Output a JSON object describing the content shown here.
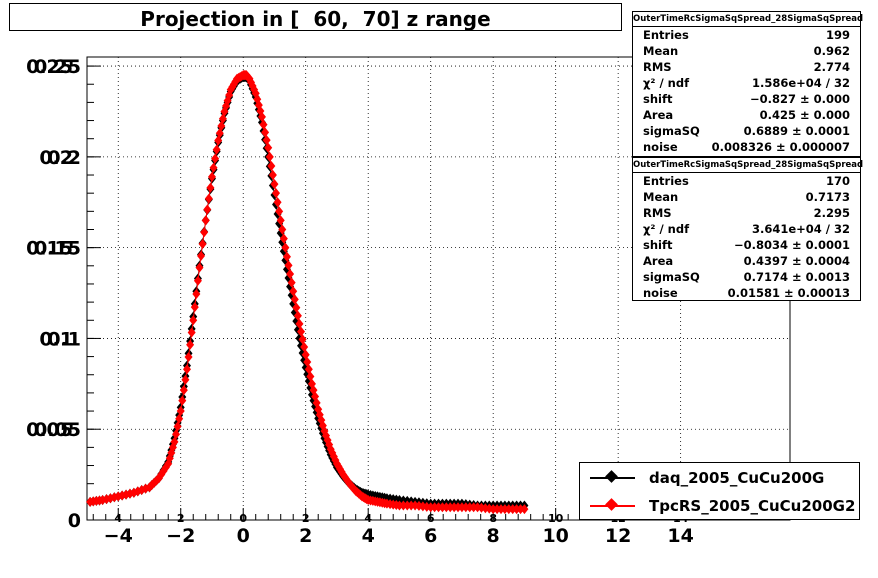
{
  "title": "Projection in [  60,  70] z range",
  "stats_boxes": [
    {
      "header": "OuterTimeRcSigmaSqSpread_28SigmaSqSpread",
      "rows": [
        {
          "label": "Entries",
          "value": "199"
        },
        {
          "label": "Mean",
          "value": "0.962"
        },
        {
          "label": "RMS",
          "value": "2.774"
        },
        {
          "label": "χ² / ndf",
          "value": "1.586e+04 / 32"
        },
        {
          "label": "shift",
          "value": "−0.827 ± 0.000"
        },
        {
          "label": "Area",
          "value": "0.425 ± 0.000"
        },
        {
          "label": "sigmaSQ",
          "value": "0.6889 ± 0.0001"
        },
        {
          "label": "noise",
          "value": "0.008326 ± 0.000007"
        }
      ]
    },
    {
      "header": "OuterTimeRcSigmaSqSpread_28SigmaSqSpread",
      "rows": [
        {
          "label": "Entries",
          "value": "170"
        },
        {
          "label": "Mean",
          "value": "0.7173"
        },
        {
          "label": "RMS",
          "value": "2.295"
        },
        {
          "label": "χ² / ndf",
          "value": "3.641e+04 / 32"
        },
        {
          "label": "shift",
          "value": "−0.8034 ± 0.0001"
        },
        {
          "label": "Area",
          "value": "0.4397 ± 0.0004"
        },
        {
          "label": "sigmaSQ",
          "value": "0.7174 ± 0.0013"
        },
        {
          "label": "noise",
          "value": "0.01581 ± 0.00013"
        }
      ]
    }
  ],
  "legend": [
    {
      "label": "daq_2005_CuCu200G",
      "color": "#000000"
    },
    {
      "label": "TpcRS_2005_CuCu200G2",
      "color": "#ff0000"
    }
  ],
  "chart_data": {
    "type": "scatter",
    "title": "Projection in [  60,  70] z range",
    "xlim": [
      -5,
      17.5
    ],
    "ylim": [
      0,
      0.255
    ],
    "x_ticks_main": [
      "−4",
      "−2",
      "0",
      "2",
      "4",
      "6",
      "8",
      "10",
      "12",
      "14"
    ],
    "x_tick_values_main": [
      -4,
      -2,
      0,
      2,
      4,
      6,
      8,
      10,
      12,
      14
    ],
    "x_ticks_small": [
      "4",
      "2",
      "0",
      "2",
      "4",
      "6",
      "8",
      "10",
      "12",
      "14"
    ],
    "y_ticks": [
      "0",
      "0.05",
      "0.1",
      "0.15",
      "0.2",
      "0.25"
    ],
    "y_tick_values": [
      0,
      0.05,
      0.1,
      0.15,
      0.2,
      0.25
    ],
    "grid": true,
    "legend_position": "bottom-right",
    "series": [
      {
        "name": "daq_2005_CuCu200G",
        "color": "#000000",
        "x": [
          -4.9,
          -4.5,
          -4.0,
          -3.5,
          -3.0,
          -2.7,
          -2.4,
          -2.2,
          -2.0,
          -1.8,
          -1.6,
          -1.4,
          -1.2,
          -1.0,
          -0.8,
          -0.6,
          -0.4,
          -0.2,
          0.0,
          0.1,
          0.2,
          0.4,
          0.6,
          0.8,
          1.0,
          1.2,
          1.4,
          1.6,
          1.8,
          2.0,
          2.2,
          2.4,
          2.6,
          2.8,
          3.0,
          3.2,
          3.4,
          3.6,
          3.8,
          4.0,
          4.3,
          4.6,
          5.0,
          5.5,
          6.0,
          6.5,
          7.0,
          7.5,
          8.0,
          8.5,
          9.0
        ],
        "y": [
          0.01,
          0.011,
          0.013,
          0.015,
          0.018,
          0.023,
          0.032,
          0.045,
          0.062,
          0.085,
          0.112,
          0.14,
          0.165,
          0.188,
          0.208,
          0.224,
          0.236,
          0.242,
          0.244,
          0.244,
          0.242,
          0.233,
          0.219,
          0.2,
          0.179,
          0.158,
          0.138,
          0.119,
          0.1,
          0.084,
          0.069,
          0.056,
          0.045,
          0.036,
          0.029,
          0.024,
          0.02,
          0.017,
          0.015,
          0.014,
          0.013,
          0.012,
          0.011,
          0.01,
          0.009,
          0.009,
          0.009,
          0.008,
          0.008,
          0.008,
          0.008
        ]
      },
      {
        "name": "TpcRS_2005_CuCu200G2",
        "color": "#ff0000",
        "x": [
          -4.9,
          -4.5,
          -4.0,
          -3.5,
          -3.0,
          -2.7,
          -2.4,
          -2.2,
          -2.0,
          -1.8,
          -1.6,
          -1.4,
          -1.2,
          -1.0,
          -0.8,
          -0.6,
          -0.4,
          -0.2,
          0.0,
          0.1,
          0.2,
          0.4,
          0.6,
          0.8,
          1.0,
          1.2,
          1.4,
          1.6,
          1.8,
          2.0,
          2.2,
          2.4,
          2.6,
          2.8,
          3.0,
          3.2,
          3.4,
          3.6,
          3.8,
          4.0,
          4.3,
          4.6,
          5.0,
          5.5,
          6.0,
          6.5,
          7.0,
          7.5,
          8.0,
          8.5,
          9.0
        ],
        "y": [
          0.01,
          0.011,
          0.013,
          0.015,
          0.018,
          0.023,
          0.031,
          0.043,
          0.06,
          0.083,
          0.11,
          0.139,
          0.165,
          0.189,
          0.209,
          0.225,
          0.237,
          0.243,
          0.245,
          0.245,
          0.243,
          0.235,
          0.222,
          0.205,
          0.185,
          0.165,
          0.145,
          0.126,
          0.108,
          0.091,
          0.075,
          0.061,
          0.049,
          0.039,
          0.031,
          0.025,
          0.02,
          0.016,
          0.013,
          0.011,
          0.01,
          0.009,
          0.008,
          0.008,
          0.007,
          0.007,
          0.007,
          0.007,
          0.006,
          0.006,
          0.006
        ]
      }
    ]
  }
}
